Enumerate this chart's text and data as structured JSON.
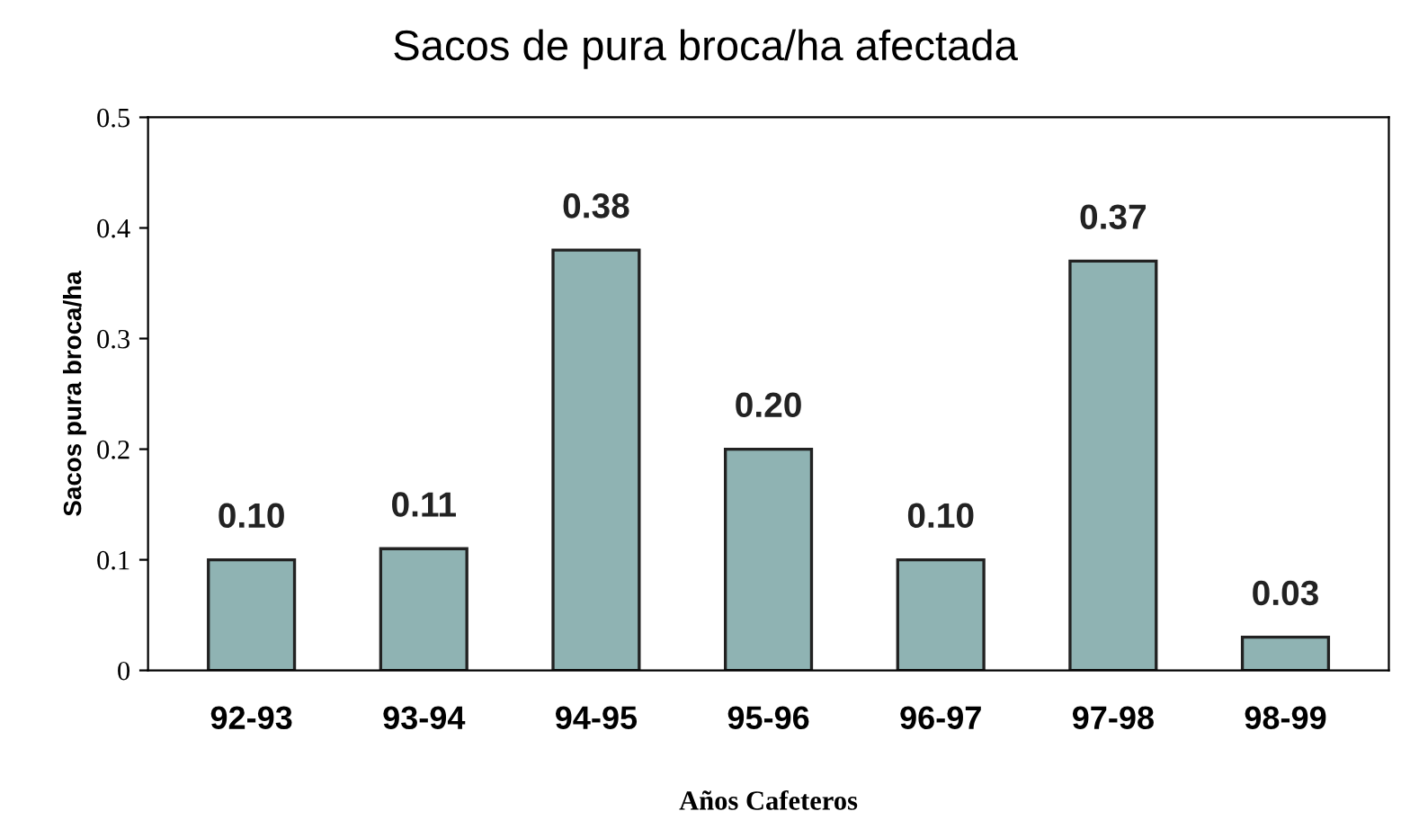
{
  "chart_data": {
    "type": "bar",
    "title": "Sacos de pura broca/ha afectada",
    "xlabel": "Años Cafeteros",
    "ylabel": "Sacos pura broca/ha",
    "categories": [
      "92-93",
      "93-94",
      "94-95",
      "95-96",
      "96-97",
      "97-98",
      "98-99"
    ],
    "values": [
      0.1,
      0.11,
      0.38,
      0.2,
      0.1,
      0.37,
      0.03
    ],
    "value_labels": [
      "0.10",
      "0.11",
      "0.38",
      "0.20",
      "0.10",
      "0.37",
      "0.03"
    ],
    "color": "#8fb3b3",
    "ylim": [
      0,
      0.5
    ],
    "yticks": [
      0,
      0.1,
      0.2,
      0.3,
      0.4,
      0.5
    ],
    "grid": false,
    "legend": false
  }
}
